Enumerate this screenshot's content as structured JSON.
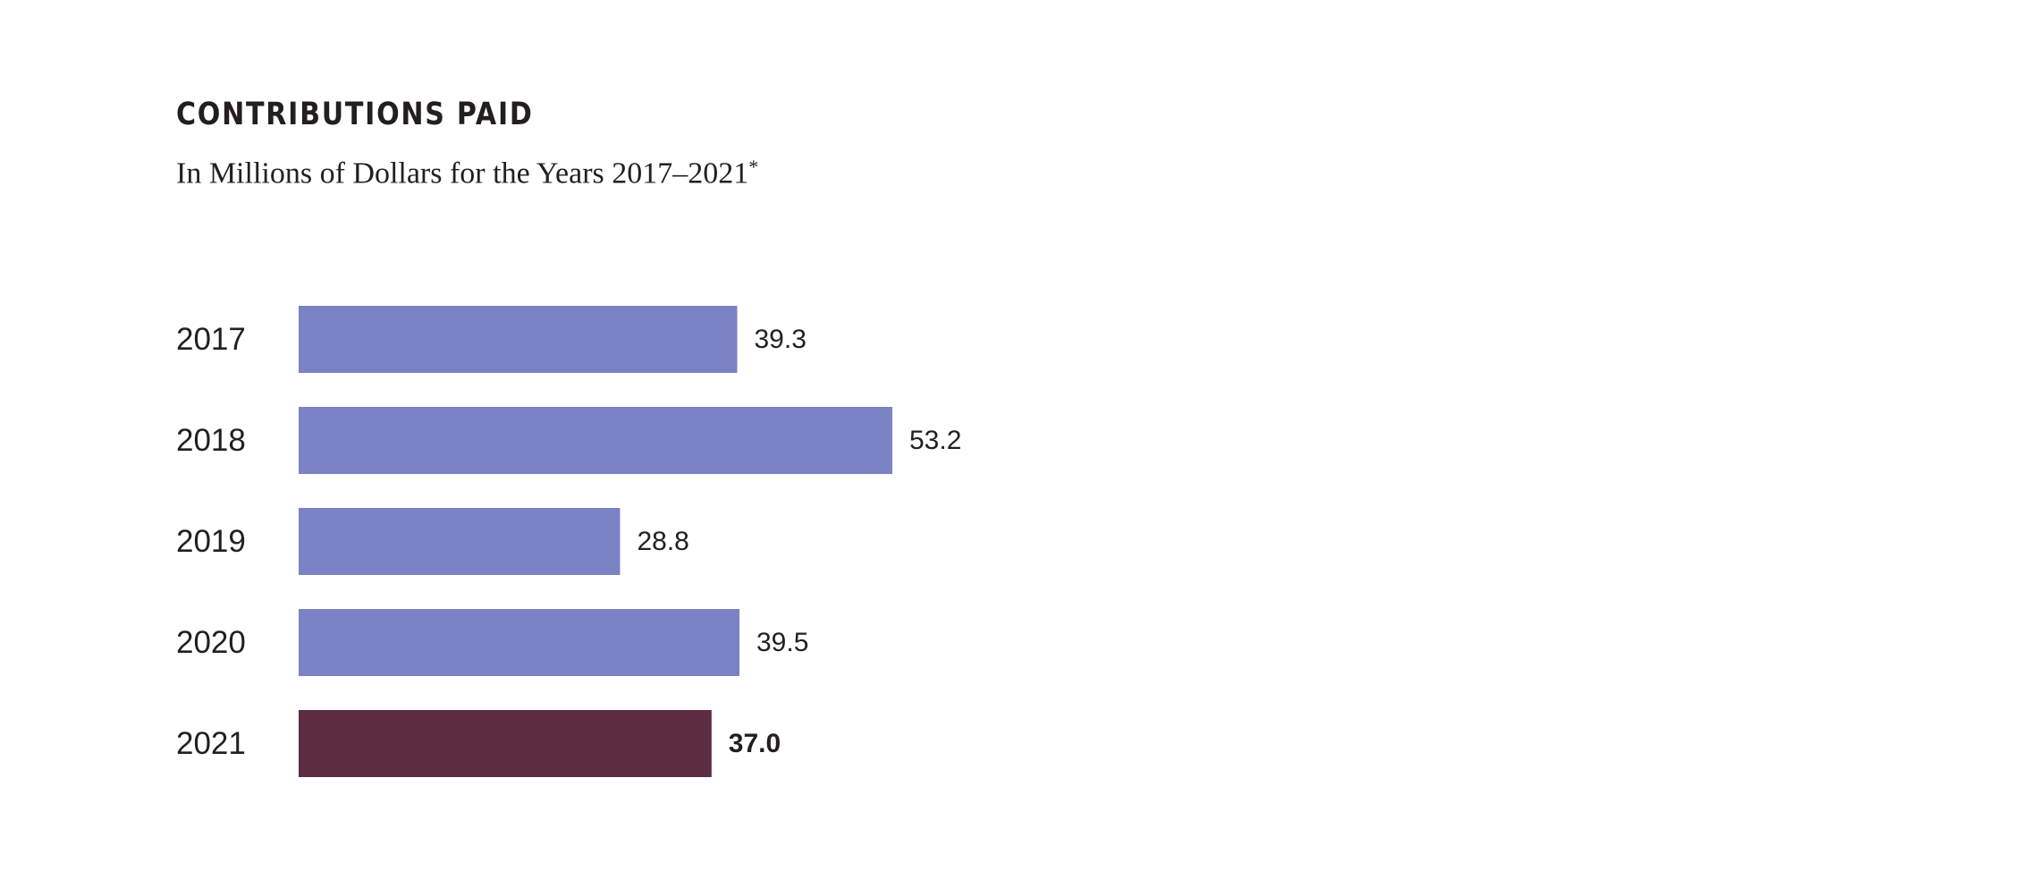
{
  "chart_data": {
    "type": "bar",
    "orientation": "horizontal",
    "title": "CONTRIBUTIONS PAID",
    "subtitle": "In Millions of Dollars for the Years 2017–2021",
    "subtitle_mark": "*",
    "categories": [
      "2017",
      "2018",
      "2019",
      "2020",
      "2021"
    ],
    "values": [
      39.3,
      53.2,
      28.8,
      39.5,
      37.0
    ],
    "value_labels": [
      "39.3",
      "53.2",
      "28.8",
      "39.5",
      "37.0"
    ],
    "highlight_index": 4,
    "xlim": [
      0,
      53.2
    ],
    "grid": false,
    "legend": "none",
    "colors": {
      "bar": "#7b82c4",
      "highlight": "#5c2d40",
      "text": "#231f20"
    }
  }
}
